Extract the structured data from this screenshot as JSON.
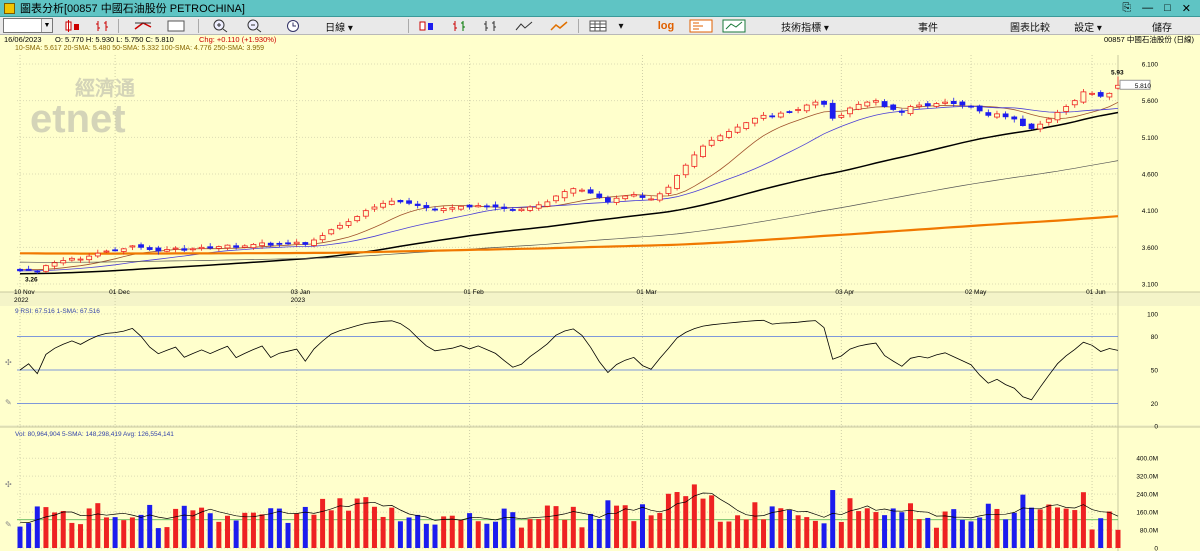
{
  "window": {
    "title": "圖表分析[00857 中國石油股份 PETROCHINA]",
    "buttons": [
      "⎘",
      "—",
      "□",
      "✕"
    ]
  },
  "toolbar": {
    "symbol_value": "",
    "period_label": "日線 ▾",
    "log_label": "log",
    "menus": {
      "indicators": "技術指標 ▾",
      "events": "事件",
      "compare": "圖表比較",
      "settings": "設定 ▾",
      "save": "儲存"
    }
  },
  "info": {
    "date": "16/06/2023",
    "ohlc": "O: 5.770   H: 5.930   L: 5.750   C: 5.810",
    "change": "Chg: +0.110 (+1.930%)",
    "stock_label": "00857 中國石油股份 (日線)",
    "ma_legend": "10-SMA: 5.617   20-SMA: 5.480   50-SMA: 5.332   100-SMA: 4.776   250-SMA: 3.959"
  },
  "watermark": {
    "cn": "經濟通",
    "en": "etnet"
  },
  "colors": {
    "bg": "#ffffcc",
    "up": "#ee2222",
    "down": "#1c1cee",
    "ma10": "#a0522d",
    "ma20": "#4b3fd6",
    "ma50": "#000000",
    "ma100": "#555555",
    "ma250": "#f07800"
  },
  "chart_data": [
    {
      "type": "candlestick",
      "title": "00857 中國石油股份 (日線)",
      "x_ticks": [
        "10 Nov\n2022",
        "01 Dec",
        "03 Jan\n2023",
        "01 Feb",
        "01 Mar",
        "03 Apr",
        "02 May",
        "01 Jun"
      ],
      "y_ticks": [
        "6.100",
        "5.600",
        "5.100",
        "4.600",
        "4.100",
        "3.600",
        "3.100"
      ],
      "y_range": [
        3.1,
        6.2
      ],
      "last_price_label": "5.810",
      "annotations": {
        "high": "5.93",
        "low": "3.26"
      },
      "closes": [
        3.28,
        3.3,
        3.27,
        3.35,
        3.39,
        3.42,
        3.45,
        3.44,
        3.48,
        3.52,
        3.55,
        3.56,
        3.58,
        3.62,
        3.6,
        3.57,
        3.55,
        3.57,
        3.59,
        3.56,
        3.58,
        3.6,
        3.59,
        3.61,
        3.63,
        3.6,
        3.62,
        3.64,
        3.66,
        3.63,
        3.65,
        3.66,
        3.67,
        3.64,
        3.7,
        3.76,
        3.84,
        3.9,
        3.95,
        4.02,
        4.1,
        4.15,
        4.2,
        4.23,
        4.22,
        4.2,
        4.17,
        4.14,
        4.12,
        4.13,
        4.14,
        4.16,
        4.15,
        4.17,
        4.16,
        4.15,
        4.13,
        4.11,
        4.12,
        4.15,
        4.18,
        4.22,
        4.3,
        4.36,
        4.4,
        4.38,
        4.34,
        4.28,
        4.22,
        4.27,
        4.3,
        4.32,
        4.28,
        4.26,
        4.33,
        4.42,
        4.58,
        4.72,
        4.86,
        4.98,
        5.06,
        5.12,
        5.18,
        5.24,
        5.3,
        5.36,
        5.4,
        5.38,
        5.43,
        5.45,
        5.48,
        5.54,
        5.58,
        5.55,
        5.36,
        5.4,
        5.5,
        5.55,
        5.58,
        5.6,
        5.52,
        5.48,
        5.44,
        5.52,
        5.54,
        5.53,
        5.56,
        5.58,
        5.56,
        5.54,
        5.52,
        5.46,
        5.4,
        5.42,
        5.38,
        5.35,
        5.26,
        5.22,
        5.28,
        5.35,
        5.44,
        5.52,
        5.6,
        5.72,
        5.7,
        5.66,
        5.7,
        5.81
      ],
      "rsi": {
        "label": "9 RSI: 67.516   1-SMA: 67.516",
        "y_ticks": [
          "100",
          "80",
          "50",
          "20",
          "0"
        ]
      },
      "volume": {
        "label": "Vol: 80,964,904   5-SMA: 148,298,419   Avg: 126,554,141",
        "y_ticks": [
          "400.0M",
          "320.0M",
          "240.0M",
          "160.0M",
          "80.0M",
          "0"
        ]
      }
    }
  ]
}
